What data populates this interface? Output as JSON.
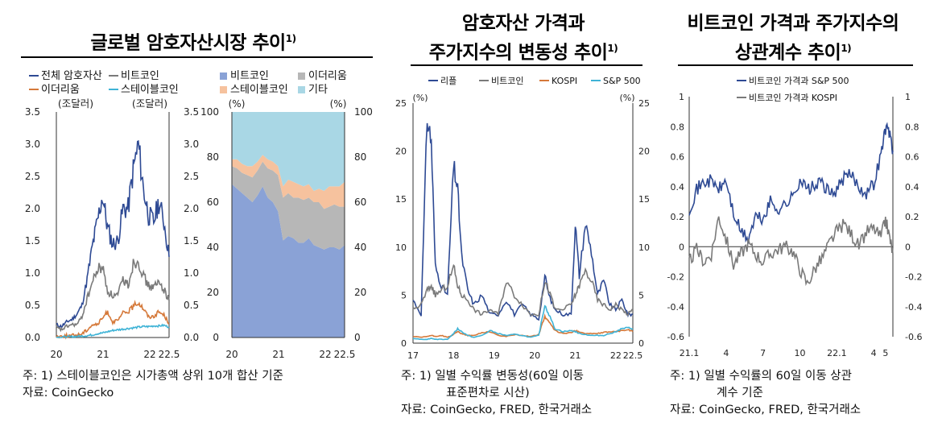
{
  "panel1": {
    "title": "글로벌 암호자산시장 추이",
    "footnote_mark": "1)",
    "legend": [
      {
        "label": "전체 암호자산",
        "color": "#2e4a94"
      },
      {
        "label": "비트코인",
        "color": "#7a7a7a"
      },
      {
        "label": "이더리움",
        "color": "#d5793a"
      },
      {
        "label": "스테이블코인",
        "color": "#3fb3d6"
      }
    ],
    "legend_right": [
      {
        "label": "비트코인",
        "color": "#8aa2d6"
      },
      {
        "label": "이더리움",
        "color": "#b7b7b7"
      },
      {
        "label": "스테이블코인",
        "color": "#f6c29e"
      },
      {
        "label": "기타",
        "color": "#a9d7e5"
      }
    ],
    "unit_left": "(조달러)",
    "unit_right": "(조달러)",
    "unit_pct_left": "(%)",
    "unit_pct_right": "(%)",
    "note1": "주: 1) 스테이블코인은 시가총액 상위 10개 합산 기준",
    "note2": "자료: CoinGecko"
  },
  "panel2": {
    "title_line1": "암호자산 가격과",
    "title_line2": "주가지수의 변동성 추이",
    "footnote_mark": "1)",
    "legend": [
      {
        "label": "리플",
        "color": "#2e4a94"
      },
      {
        "label": "비트코인",
        "color": "#7a7a7a"
      },
      {
        "label": "KOSPI",
        "color": "#d5793a"
      },
      {
        "label": "S&P 500",
        "color": "#3fb3d6"
      }
    ],
    "unit_left": "(%)",
    "unit_right": "(%)",
    "note1": "주: 1) 일별 수익률 변동성(60일 이동",
    "note1b": "표준편차로 시산)",
    "note2": "자료: CoinGecko, FRED, 한국거래소"
  },
  "panel3": {
    "title_line1": "비트코인 가격과 주가지수의",
    "title_line2": "상관계수 추이",
    "footnote_mark": "1)",
    "legend": [
      {
        "label": "비트코인 가격과 S&P 500",
        "color": "#2e4a94"
      },
      {
        "label": "비트코인 가격과 KOSPI",
        "color": "#7a7a7a"
      }
    ],
    "note1": "주: 1) 일별 수익률의 60일 이동 상관",
    "note1b": "계수 기준",
    "note2": "자료: CoinGecko, FRED, 한국거래소"
  },
  "chart_data": [
    {
      "type": "line",
      "title": "글로벌 암호자산시장 추이",
      "ylabel": "(조달러)",
      "ylim": [
        0,
        3.5
      ],
      "yticks": [
        "0.0",
        "0.5",
        "1.0",
        "1.5",
        "2.0",
        "2.5",
        "3.0",
        "3.5"
      ],
      "xticks": [
        "20",
        "21",
        "22",
        "22.5"
      ],
      "x": [
        "2020-01",
        "2020-03",
        "2020-05",
        "2020-07",
        "2020-09",
        "2020-11",
        "2021-01",
        "2021-02",
        "2021-03",
        "2021-04",
        "2021-05",
        "2021-06",
        "2021-07",
        "2021-08",
        "2021-09",
        "2021-10",
        "2021-11",
        "2021-12",
        "2022-01",
        "2022-02",
        "2022-03",
        "2022-04",
        "2022-05"
      ],
      "series": [
        {
          "name": "전체 암호자산",
          "color": "#2e4a94",
          "values": [
            0.2,
            0.17,
            0.24,
            0.28,
            0.36,
            0.5,
            0.9,
            1.4,
            1.8,
            2.2,
            1.7,
            1.45,
            1.5,
            2.0,
            2.0,
            2.6,
            3.0,
            2.3,
            1.9,
            1.8,
            2.1,
            1.8,
            1.25
          ]
        },
        {
          "name": "비트코인",
          "color": "#7a7a7a",
          "values": [
            0.15,
            0.12,
            0.17,
            0.2,
            0.2,
            0.32,
            0.6,
            0.85,
            1.05,
            1.1,
            0.72,
            0.65,
            0.65,
            0.9,
            0.82,
            1.15,
            1.2,
            0.95,
            0.8,
            0.78,
            0.85,
            0.75,
            0.58
          ]
        },
        {
          "name": "이더리움",
          "color": "#d5793a",
          "values": [
            0.02,
            0.02,
            0.025,
            0.03,
            0.04,
            0.06,
            0.12,
            0.2,
            0.2,
            0.3,
            0.4,
            0.24,
            0.26,
            0.38,
            0.4,
            0.48,
            0.55,
            0.45,
            0.32,
            0.33,
            0.4,
            0.35,
            0.22
          ]
        },
        {
          "name": "스테이블코인",
          "color": "#3fb3d6",
          "values": [
            0.005,
            0.007,
            0.01,
            0.012,
            0.018,
            0.022,
            0.03,
            0.04,
            0.06,
            0.07,
            0.09,
            0.11,
            0.12,
            0.13,
            0.14,
            0.15,
            0.16,
            0.17,
            0.17,
            0.18,
            0.18,
            0.19,
            0.16
          ]
        }
      ]
    },
    {
      "type": "area",
      "title": "",
      "ylabel": "(%)",
      "ylim": [
        0,
        100
      ],
      "yticks": [
        "0",
        "20",
        "40",
        "60",
        "80",
        "100"
      ],
      "xticks": [
        "20",
        "21",
        "22",
        "22.5"
      ],
      "x": [
        "2020-01",
        "2020-03",
        "2020-05",
        "2020-07",
        "2020-09",
        "2020-11",
        "2021-01",
        "2021-02",
        "2021-03",
        "2021-04",
        "2021-05",
        "2021-06",
        "2021-07",
        "2021-08",
        "2021-09",
        "2021-10",
        "2021-11",
        "2021-12",
        "2022-01",
        "2022-02",
        "2022-03",
        "2022-04",
        "2022-05"
      ],
      "series": [
        {
          "name": "비트코인",
          "color": "#8aa2d6",
          "values": [
            68,
            66,
            64,
            62,
            60,
            63,
            67,
            62,
            60,
            56,
            43,
            45,
            44,
            42,
            42,
            44,
            41,
            40,
            39,
            40,
            40,
            39,
            41
          ]
        },
        {
          "name": "이더리움",
          "color": "#b7b7b7",
          "values": [
            8,
            9,
            9,
            10,
            11,
            11,
            11,
            13,
            14,
            16,
            19,
            19,
            18,
            20,
            19,
            18,
            19,
            20,
            18,
            18,
            19,
            19,
            17
          ]
        },
        {
          "name": "스테이블코인",
          "color": "#f6c29e",
          "values": [
            3,
            4,
            4,
            4,
            5,
            4,
            3,
            4,
            4,
            4,
            5,
            6,
            7,
            6,
            6,
            6,
            5,
            6,
            8,
            9,
            8,
            9,
            11
          ]
        },
        {
          "name": "기타",
          "color": "#a9d7e5",
          "values": [
            21,
            21,
            23,
            24,
            24,
            22,
            19,
            21,
            22,
            24,
            33,
            30,
            31,
            32,
            33,
            32,
            35,
            34,
            35,
            33,
            33,
            33,
            31
          ]
        }
      ]
    },
    {
      "type": "line",
      "title": "암호자산 가격과 주가지수의 변동성 추이",
      "ylabel": "(%)",
      "ylim": [
        0,
        25
      ],
      "yticks": [
        "0",
        "5",
        "10",
        "15",
        "20",
        "25"
      ],
      "xticks": [
        "17",
        "18",
        "19",
        "20",
        "21",
        "22",
        "22.5"
      ],
      "x": [
        2017.0,
        2017.2,
        2017.35,
        2017.45,
        2017.55,
        2017.7,
        2017.85,
        2018.0,
        2018.1,
        2018.2,
        2018.35,
        2018.5,
        2018.7,
        2018.9,
        2019.1,
        2019.3,
        2019.5,
        2019.7,
        2019.9,
        2020.1,
        2020.25,
        2020.35,
        2020.5,
        2020.7,
        2020.9,
        2021.0,
        2021.1,
        2021.25,
        2021.4,
        2021.55,
        2021.7,
        2021.85,
        2022.0,
        2022.15,
        2022.3,
        2022.42
      ],
      "series": [
        {
          "name": "리플",
          "color": "#2e4a94",
          "values": [
            4.5,
            3.0,
            23.5,
            21.0,
            8.0,
            6.0,
            5.0,
            18.5,
            16.0,
            9.0,
            5.5,
            4.0,
            5.0,
            3.0,
            3.0,
            4.5,
            3.0,
            4.0,
            3.0,
            2.5,
            7.0,
            5.0,
            3.5,
            3.0,
            3.0,
            12.5,
            7.0,
            12.5,
            9.5,
            5.0,
            6.5,
            4.0,
            3.5,
            4.5,
            3.0,
            3.0
          ]
        },
        {
          "name": "비트코인",
          "color": "#7a7a7a",
          "values": [
            3.5,
            4.0,
            5.5,
            6.0,
            5.0,
            5.5,
            6.0,
            8.0,
            6.0,
            5.0,
            4.5,
            3.5,
            3.0,
            3.5,
            3.0,
            6.5,
            5.0,
            4.0,
            3.0,
            3.0,
            6.5,
            5.5,
            3.5,
            3.5,
            4.0,
            5.0,
            6.0,
            7.5,
            6.5,
            4.5,
            4.0,
            3.5,
            4.0,
            3.5,
            3.0,
            3.5
          ]
        },
        {
          "name": "KOSPI",
          "color": "#d5793a",
          "values": [
            0.7,
            0.6,
            0.7,
            0.8,
            0.7,
            0.8,
            0.6,
            0.9,
            1.2,
            1.0,
            0.8,
            0.8,
            1.1,
            1.2,
            0.8,
            0.7,
            0.9,
            0.8,
            0.7,
            0.9,
            2.8,
            2.2,
            1.3,
            1.0,
            1.1,
            1.3,
            1.2,
            1.0,
            1.0,
            1.0,
            1.1,
            1.2,
            1.2,
            1.3,
            1.4,
            1.2
          ]
        },
        {
          "name": "S&P 500",
          "color": "#3fb3d6",
          "values": [
            0.5,
            0.4,
            0.4,
            0.5,
            0.4,
            0.4,
            0.4,
            1.0,
            1.5,
            1.2,
            0.8,
            0.6,
            0.8,
            1.3,
            1.0,
            0.8,
            0.9,
            0.8,
            0.6,
            0.8,
            4.0,
            3.0,
            1.5,
            1.2,
            1.3,
            1.2,
            1.0,
            0.9,
            0.8,
            0.8,
            0.8,
            1.0,
            1.2,
            1.5,
            1.6,
            1.5
          ]
        }
      ]
    },
    {
      "type": "line",
      "title": "비트코인 가격과 주가지수의 상관계수 추이",
      "ylim": [
        -0.6,
        1
      ],
      "yticks": [
        "-0.6",
        "-0.4",
        "-0.2",
        "0",
        "0.2",
        "0.4",
        "0.6",
        "0.8",
        "1"
      ],
      "xticks": [
        "21.1",
        "4",
        "7",
        "10",
        "22.1",
        "4",
        "5"
      ],
      "x": [
        2021.0,
        2021.05,
        2021.1,
        2021.15,
        2021.2,
        2021.25,
        2021.3,
        2021.35,
        2021.4,
        2021.45,
        2021.5,
        2021.55,
        2021.6,
        2021.65,
        2021.7,
        2021.75,
        2021.8,
        2021.85,
        2021.9,
        2021.95,
        2022.0,
        2022.05,
        2022.1,
        2022.15,
        2022.2,
        2022.25,
        2022.3,
        2022.33,
        2022.36,
        2022.38
      ],
      "series": [
        {
          "name": "비트코인 가격과 S&P 500",
          "color": "#2e4a94",
          "values": [
            0.25,
            0.38,
            0.43,
            0.44,
            0.38,
            0.44,
            0.22,
            0.1,
            0.05,
            0.2,
            0.18,
            0.3,
            0.25,
            0.28,
            0.33,
            0.45,
            0.38,
            0.4,
            0.43,
            0.35,
            0.38,
            0.46,
            0.48,
            0.4,
            0.36,
            0.42,
            0.62,
            0.79,
            0.76,
            0.64
          ]
        },
        {
          "name": "비트코인 가격과 KOSPI",
          "color": "#7a7a7a",
          "values": [
            -0.1,
            -0.02,
            -0.1,
            -0.05,
            0.2,
            0.05,
            -0.12,
            -0.05,
            0.02,
            -0.05,
            -0.1,
            -0.05,
            -0.02,
            0.0,
            -0.03,
            -0.15,
            -0.25,
            -0.15,
            -0.08,
            0.02,
            0.1,
            0.15,
            0.08,
            0.0,
            0.1,
            0.12,
            0.06,
            0.18,
            0.05,
            -0.05
          ]
        }
      ]
    }
  ]
}
